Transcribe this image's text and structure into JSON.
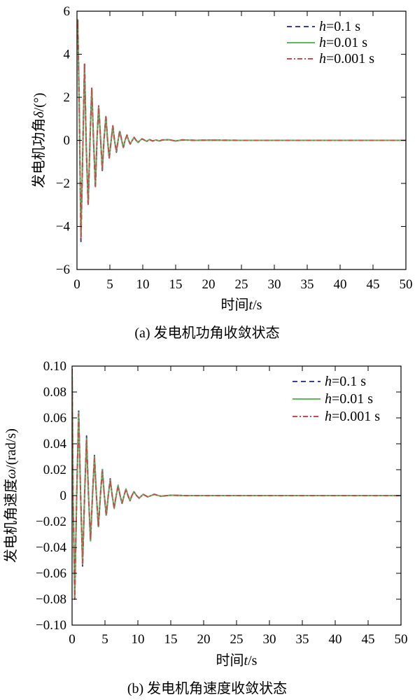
{
  "figure": {
    "chart_data": [
      {
        "type": "line",
        "caption": "(a) 发电机功角收敛状态",
        "xlabel_main": "时间",
        "xlabel_sym": "t",
        "xlabel_unit": "/s",
        "ylabel_main": "发电机功角",
        "ylabel_sym": "δ",
        "ylabel_unit": "/(°)",
        "xlim": [
          0,
          50
        ],
        "ylim": [
          -6,
          6
        ],
        "xticks": [
          0,
          5,
          10,
          15,
          20,
          25,
          30,
          35,
          40,
          45,
          50
        ],
        "xtick_labels": [
          "0",
          "5",
          "10",
          "15",
          "20",
          "25",
          "30",
          "35",
          "40",
          "45",
          "50"
        ],
        "yticks": [
          -6,
          -4,
          -2,
          0,
          2,
          4,
          6
        ],
        "ytick_labels": [
          "−6",
          "−4",
          "−2",
          "0",
          "2",
          "4",
          "6"
        ],
        "grid": false,
        "legend_position": "top-right",
        "series": [
          {
            "legend_sym": "h",
            "legend_text": "=0.1 s",
            "color": "#3a3f8f",
            "dash": "dash",
            "x": [
              0,
              0.12,
              0.35,
              0.6,
              0.9,
              1.15,
              1.4,
              1.7,
              2.0,
              2.25,
              2.5,
              2.8,
              3.05,
              3.3,
              3.6,
              3.85,
              4.1,
              4.4,
              4.65,
              4.9,
              5.2,
              5.45,
              5.7,
              6.0,
              6.25,
              6.5,
              6.8,
              7.05,
              7.3,
              7.6,
              7.85,
              8.1,
              8.4,
              8.7,
              9.0,
              9.3,
              9.6,
              9.9,
              10.2,
              10.6,
              11.0,
              11.5,
              12.0,
              12.5,
              13.0,
              14.0,
              15.0,
              16.0,
              18.0,
              20.0,
              25.0,
              30.0,
              35.0,
              40.0,
              45.0,
              50.0
            ],
            "y": [
              5.4,
              5.7,
              1.5,
              -4.7,
              -0.2,
              3.6,
              -0.2,
              -3.0,
              0.2,
              2.5,
              0.1,
              -2.2,
              0.1,
              1.6,
              0.0,
              -1.4,
              0.0,
              1.15,
              0.0,
              -0.85,
              0.0,
              0.7,
              0.0,
              -0.55,
              0.0,
              0.45,
              0.0,
              -0.35,
              0.0,
              0.25,
              0.0,
              -0.18,
              0.0,
              0.14,
              0.0,
              -0.1,
              0.0,
              0.07,
              0.02,
              -0.05,
              0.04,
              -0.03,
              0.02,
              -0.03,
              0.02,
              0.03,
              -0.03,
              0.02,
              0.0,
              0.01,
              0.0,
              0.0,
              0.0,
              0.0,
              0.0,
              0.0
            ]
          },
          {
            "legend_sym": "h",
            "legend_text": "=0.01 s",
            "color": "#5cb85c",
            "dash": "solid",
            "x": [
              0,
              0.12,
              0.35,
              0.6,
              0.9,
              1.15,
              1.4,
              1.7,
              2.0,
              2.25,
              2.5,
              2.8,
              3.05,
              3.3,
              3.6,
              3.85,
              4.1,
              4.4,
              4.65,
              4.9,
              5.2,
              5.45,
              5.7,
              6.0,
              6.25,
              6.5,
              6.8,
              7.05,
              7.3,
              7.6,
              7.85,
              8.1,
              8.4,
              8.7,
              9.0,
              9.3,
              9.6,
              9.9,
              10.2,
              10.6,
              11.0,
              11.5,
              12.0,
              12.5,
              13.0,
              14.0,
              15.0,
              16.0,
              18.0,
              20.0,
              25.0,
              30.0,
              35.0,
              40.0,
              45.0,
              50.0
            ],
            "y": [
              5.3,
              5.6,
              1.4,
              -4.5,
              -0.2,
              3.5,
              -0.2,
              -2.9,
              0.2,
              2.4,
              0.1,
              -2.1,
              0.1,
              1.55,
              0.0,
              -1.35,
              0.0,
              1.1,
              0.0,
              -0.8,
              0.0,
              0.65,
              0.0,
              -0.5,
              0.0,
              0.42,
              0.0,
              -0.32,
              0.0,
              0.24,
              0.0,
              -0.17,
              0.0,
              0.13,
              0.0,
              -0.09,
              0.0,
              0.07,
              0.02,
              -0.05,
              0.04,
              -0.03,
              0.02,
              -0.03,
              0.02,
              0.03,
              -0.03,
              0.02,
              0.0,
              0.01,
              0.0,
              0.0,
              0.0,
              0.0,
              0.0,
              0.0
            ]
          },
          {
            "legend_sym": "h",
            "legend_text": "=0.001 s",
            "color": "#c0504d",
            "dash": "dashdot",
            "x": [
              0,
              0.12,
              0.35,
              0.6,
              0.9,
              1.15,
              1.4,
              1.7,
              2.0,
              2.25,
              2.5,
              2.8,
              3.05,
              3.3,
              3.6,
              3.85,
              4.1,
              4.4,
              4.65,
              4.9,
              5.2,
              5.45,
              5.7,
              6.0,
              6.25,
              6.5,
              6.8,
              7.05,
              7.3,
              7.6,
              7.85,
              8.1,
              8.4,
              8.7,
              9.0,
              9.3,
              9.6,
              9.9,
              10.2,
              10.6,
              11.0,
              11.5,
              12.0,
              12.5,
              13.0,
              14.0,
              15.0,
              16.0,
              18.0,
              20.0,
              25.0,
              30.0,
              35.0,
              40.0,
              45.0,
              50.0
            ],
            "y": [
              5.3,
              5.6,
              1.4,
              -4.5,
              -0.2,
              3.6,
              -0.2,
              -3.0,
              0.2,
              2.45,
              0.1,
              -2.15,
              0.1,
              1.6,
              0.0,
              -1.4,
              0.0,
              1.1,
              0.0,
              -0.82,
              0.0,
              0.68,
              0.0,
              -0.52,
              0.0,
              0.44,
              0.0,
              -0.33,
              0.0,
              0.24,
              0.0,
              -0.17,
              0.0,
              0.13,
              0.0,
              -0.09,
              0.0,
              0.07,
              0.02,
              -0.05,
              0.04,
              -0.03,
              0.02,
              -0.03,
              0.02,
              0.03,
              -0.03,
              0.02,
              0.0,
              0.01,
              0.0,
              0.0,
              0.0,
              0.0,
              0.0,
              0.0
            ]
          }
        ]
      },
      {
        "type": "line",
        "caption": "(b) 发电机角速度收敛状态",
        "xlabel_main": "时间",
        "xlabel_sym": "t",
        "xlabel_unit": "/s",
        "ylabel_main": "发电机角速度",
        "ylabel_sym": "ω",
        "ylabel_unit": "/(rad/s)",
        "xlim": [
          0,
          50
        ],
        "ylim": [
          -0.1,
          0.1
        ],
        "xticks": [
          0,
          5,
          10,
          15,
          20,
          25,
          30,
          35,
          40,
          45,
          50
        ],
        "xtick_labels": [
          "0",
          "5",
          "10",
          "15",
          "20",
          "25",
          "30",
          "35",
          "40",
          "45",
          "50"
        ],
        "yticks": [
          -0.1,
          -0.08,
          -0.06,
          -0.04,
          -0.02,
          0,
          0.02,
          0.04,
          0.06,
          0.08,
          0.1
        ],
        "ytick_labels": [
          "−0.10",
          "−0.08",
          "−0.06",
          "−0.04",
          "−0.02",
          "0",
          "0.02",
          "0.04",
          "0.06",
          "0.08",
          "0.10"
        ],
        "grid": false,
        "legend_position": "top-right",
        "series": [
          {
            "legend_sym": "h",
            "legend_text": "=0.1 s",
            "color": "#3a3f8f",
            "dash": "dash",
            "x": [
              0,
              0.15,
              0.4,
              0.7,
              1.0,
              1.3,
              1.6,
              1.9,
              2.2,
              2.5,
              2.8,
              3.1,
              3.4,
              3.7,
              4.0,
              4.3,
              4.6,
              4.9,
              5.2,
              5.5,
              5.8,
              6.1,
              6.4,
              6.7,
              7.0,
              7.3,
              7.6,
              7.9,
              8.2,
              8.5,
              8.8,
              9.1,
              9.4,
              9.8,
              10.2,
              10.8,
              11.5,
              12.5,
              13.5,
              15.0,
              17.0,
              20.0,
              25.0,
              30.0,
              35.0,
              40.0,
              45.0,
              50.0
            ],
            "y": [
              0.098,
              0.0,
              -0.08,
              0.0,
              0.066,
              0.0,
              -0.055,
              0.0,
              0.046,
              0.0,
              -0.036,
              0.0,
              0.031,
              0.0,
              -0.025,
              0.0,
              0.021,
              0.0,
              -0.016,
              0.0,
              0.013,
              0.0,
              -0.01,
              0.0,
              0.008,
              0.0,
              -0.006,
              0.0,
              0.005,
              0.0,
              -0.004,
              0.0,
              0.003,
              0.0,
              -0.002,
              0.001,
              -0.001,
              0.001,
              -0.0005,
              0.0003,
              0.0,
              0.0,
              0.0,
              0.0,
              0.0,
              0.0,
              0.0,
              0.0
            ]
          },
          {
            "legend_sym": "h",
            "legend_text": "=0.01 s",
            "color": "#5cb85c",
            "dash": "solid",
            "x": [
              0,
              0.15,
              0.4,
              0.7,
              1.0,
              1.3,
              1.6,
              1.9,
              2.2,
              2.5,
              2.8,
              3.1,
              3.4,
              3.7,
              4.0,
              4.3,
              4.6,
              4.9,
              5.2,
              5.5,
              5.8,
              6.1,
              6.4,
              6.7,
              7.0,
              7.3,
              7.6,
              7.9,
              8.2,
              8.5,
              8.8,
              9.1,
              9.4,
              9.8,
              10.2,
              10.8,
              11.5,
              12.5,
              13.5,
              15.0,
              17.0,
              20.0,
              25.0,
              30.0,
              35.0,
              40.0,
              45.0,
              50.0
            ],
            "y": [
              0.097,
              0.0,
              -0.078,
              0.0,
              0.064,
              0.0,
              -0.053,
              0.0,
              0.044,
              0.0,
              -0.035,
              0.0,
              0.03,
              0.0,
              -0.024,
              0.0,
              0.02,
              0.0,
              -0.015,
              0.0,
              0.012,
              0.0,
              -0.01,
              0.0,
              0.008,
              0.0,
              -0.006,
              0.0,
              0.005,
              0.0,
              -0.004,
              0.0,
              0.003,
              0.0,
              -0.002,
              0.001,
              -0.001,
              0.001,
              -0.0005,
              0.0003,
              0.0,
              0.0,
              0.0,
              0.0,
              0.0,
              0.0,
              0.0,
              0.0
            ]
          },
          {
            "legend_sym": "h",
            "legend_text": "=0.001 s",
            "color": "#c0504d",
            "dash": "dashdot",
            "x": [
              0,
              0.15,
              0.4,
              0.7,
              1.0,
              1.3,
              1.6,
              1.9,
              2.2,
              2.5,
              2.8,
              3.1,
              3.4,
              3.7,
              4.0,
              4.3,
              4.6,
              4.9,
              5.2,
              5.5,
              5.8,
              6.1,
              6.4,
              6.7,
              7.0,
              7.3,
              7.6,
              7.9,
              8.2,
              8.5,
              8.8,
              9.1,
              9.4,
              9.8,
              10.2,
              10.8,
              11.5,
              12.5,
              13.5,
              15.0,
              17.0,
              20.0,
              25.0,
              30.0,
              35.0,
              40.0,
              45.0,
              50.0
            ],
            "y": [
              0.097,
              0.0,
              -0.079,
              0.0,
              0.063,
              0.0,
              -0.052,
              0.0,
              0.043,
              0.0,
              -0.034,
              0.0,
              0.029,
              0.0,
              -0.024,
              0.0,
              0.019,
              0.0,
              -0.015,
              0.0,
              0.012,
              0.0,
              -0.009,
              0.0,
              0.007,
              0.0,
              -0.006,
              0.0,
              0.005,
              0.0,
              -0.004,
              0.0,
              0.003,
              0.0,
              -0.002,
              0.001,
              -0.001,
              0.001,
              -0.0005,
              0.0003,
              0.0,
              0.0,
              0.0,
              0.0,
              0.0,
              0.0,
              0.0,
              0.0
            ]
          }
        ]
      }
    ]
  }
}
